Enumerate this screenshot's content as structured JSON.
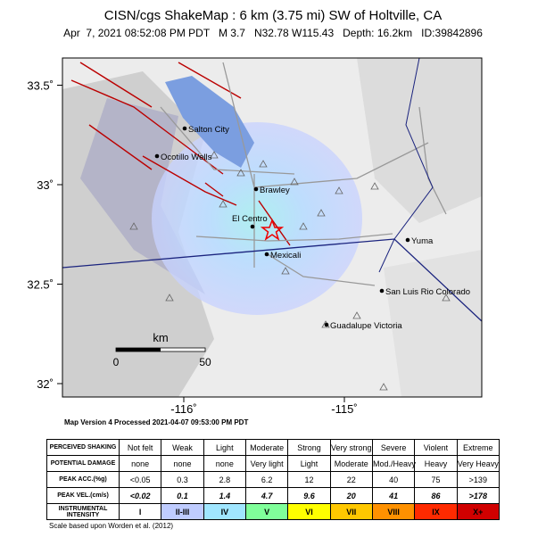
{
  "header": {
    "title": "CISN/cgs ShakeMap : 6 km (3.75 mi) SW of Holtville, CA",
    "subtitle": "Apr  7, 2021 08:52:08 PM PDT   M 3.7   N32.78 W115.43   Depth: 16.2km   ID:39842896"
  },
  "map": {
    "lat_ticks": [
      {
        "value": 33.5,
        "label": "33.5˚"
      },
      {
        "value": 33,
        "label": "33˚"
      },
      {
        "value": 32.5,
        "label": "32.5˚"
      },
      {
        "value": 32,
        "label": "32˚"
      }
    ],
    "lon_ticks": [
      {
        "value": -116,
        "label": "-116˚"
      },
      {
        "value": -115,
        "label": "-115˚"
      }
    ],
    "cities": [
      "Salton City",
      "Ocotillo Wells",
      "Brawley",
      "El Centro",
      "Mexicali",
      "Yuma",
      "San Luis Rio Colorado",
      "Guadalupe Victoria"
    ],
    "scale": {
      "unit": "km",
      "start": "0",
      "end": "50"
    },
    "version": "Map Version 4 Processed 2021-04-07 09:53:00 PM PDT"
  },
  "table": {
    "rows": [
      [
        "PERCEIVED SHAKING",
        "Not felt",
        "Weak",
        "Light",
        "Moderate",
        "Strong",
        "Very strong",
        "Severe",
        "Violent",
        "Extreme"
      ],
      [
        "POTENTIAL DAMAGE",
        "none",
        "none",
        "none",
        "Very light",
        "Light",
        "Moderate",
        "Mod./Heavy",
        "Heavy",
        "Very Heavy"
      ],
      [
        "PEAK ACC.(%g)",
        "<0.05",
        "0.3",
        "2.8",
        "6.2",
        "12",
        "22",
        "40",
        "75",
        ">139"
      ],
      [
        "PEAK VEL.(cm/s)",
        "<0.02",
        "0.1",
        "1.4",
        "4.7",
        "9.6",
        "20",
        "41",
        "86",
        ">178"
      ],
      [
        "INSTRUMENTAL INTENSITY",
        "I",
        "II-III",
        "IV",
        "V",
        "VI",
        "VII",
        "VIII",
        "IX",
        "X+"
      ]
    ],
    "intensity_colors": [
      "#ffffff",
      "#bfccff",
      "#a0e6ff",
      "#80ff9a",
      "#ffff00",
      "#ffc800",
      "#ff9100",
      "#ff2a00",
      "#d00000"
    ],
    "footnote": "Scale based upon Worden et al. (2012)"
  }
}
